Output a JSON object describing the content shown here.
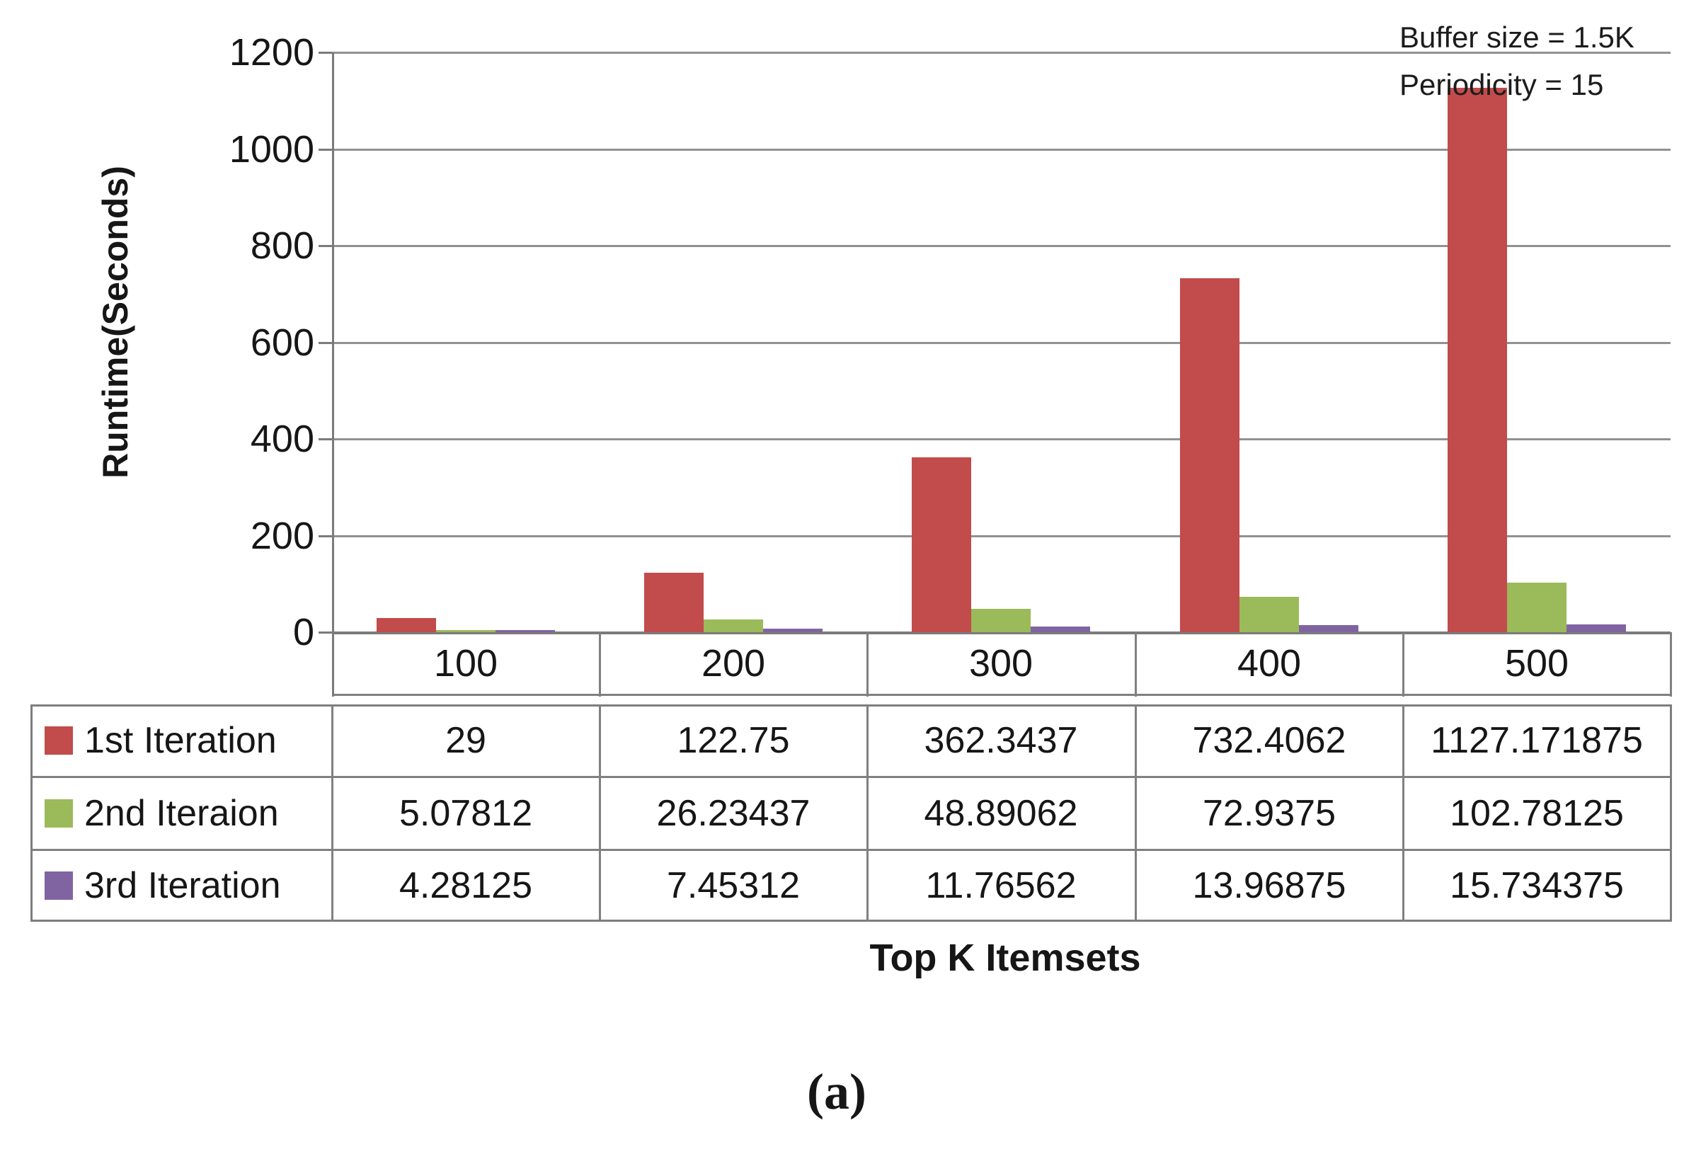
{
  "figure": {
    "caption": "(a)",
    "annotation_line1": "Buffer size = 1.5K",
    "annotation_line2": "Periodicity = 15"
  },
  "chart_data": {
    "type": "bar",
    "title": "",
    "xlabel": "Top K Itemsets",
    "ylabel": "Runtime(Seconds)",
    "ylim": [
      0,
      1200
    ],
    "ytick_step": 200,
    "yticks": [
      "0",
      "200",
      "400",
      "600",
      "800",
      "1000",
      "1200"
    ],
    "grid": true,
    "legend_position": "left-column-of-data-table",
    "annotations": [
      "Buffer size = 1.5K",
      "Periodicity = 15"
    ],
    "categories": [
      "100",
      "200",
      "300",
      "400",
      "500"
    ],
    "series": [
      {
        "name": "1st Iteration",
        "color": "#C24B4B",
        "values": [
          29,
          122.75,
          362.3437,
          732.4062,
          1127.171875
        ]
      },
      {
        "name": "2nd Iteraion",
        "color": "#9BBA59",
        "values": [
          5.07812,
          26.23437,
          48.89062,
          72.9375,
          102.78125
        ]
      },
      {
        "name": "3rd Iteration",
        "color": "#8064A2",
        "values": [
          4.28125,
          7.45312,
          11.76562,
          13.96875,
          15.734375
        ]
      }
    ],
    "data_table_values": [
      [
        "29",
        "122.75",
        "362.3437",
        "732.4062",
        "1127.171875"
      ],
      [
        "5.07812",
        "26.23437",
        "48.89062",
        "72.9375",
        "102.78125"
      ],
      [
        "4.28125",
        "7.45312",
        "11.76562",
        "13.96875",
        "15.734375"
      ]
    ]
  }
}
